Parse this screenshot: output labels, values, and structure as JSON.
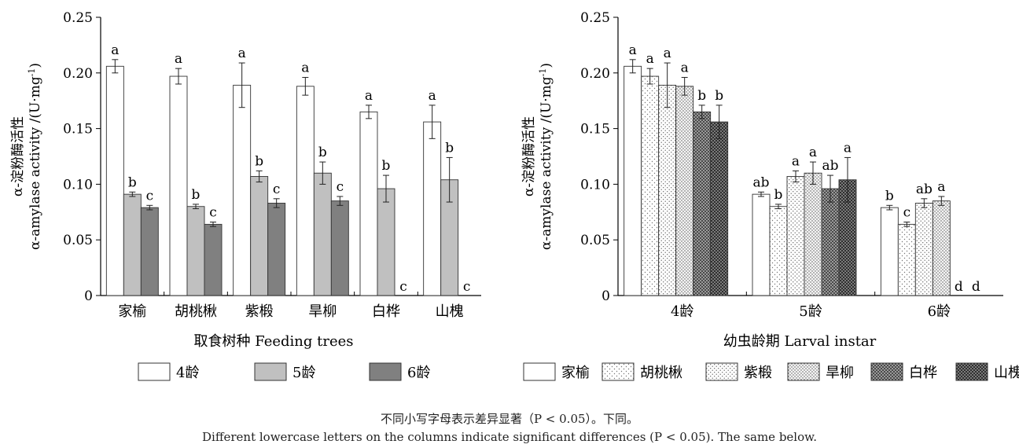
{
  "chart_data": [
    {
      "type": "bar",
      "categories": [
        "家榆",
        "胡桃楸",
        "紫椴",
        "旱柳",
        "白桦",
        "山槐"
      ],
      "series": [
        {
          "name": "4龄",
          "values": [
            0.206,
            0.197,
            0.189,
            0.188,
            0.165,
            0.156
          ],
          "errors": [
            0.006,
            0.007,
            0.02,
            0.008,
            0.006,
            0.015
          ],
          "letters": [
            "a",
            "a",
            "a",
            "a",
            "a",
            "a"
          ]
        },
        {
          "name": "5龄",
          "values": [
            0.091,
            0.08,
            0.107,
            0.11,
            0.096,
            0.104
          ],
          "errors": [
            0.002,
            0.002,
            0.005,
            0.01,
            0.012,
            0.02
          ],
          "letters": [
            "b",
            "b",
            "b",
            "b",
            "b",
            "b"
          ]
        },
        {
          "name": "6龄",
          "values": [
            0.079,
            0.064,
            0.083,
            0.085,
            0,
            0
          ],
          "errors": [
            0.002,
            0.002,
            0.004,
            0.004,
            0,
            0
          ],
          "letters": [
            "c",
            "c",
            "c",
            "c",
            "c",
            "c"
          ]
        }
      ],
      "colors": [
        "#ffffff",
        "#c0c0c0",
        "#808080"
      ],
      "ylabel_cn": "α-淀粉酶活性",
      "ylabel_en": "α-amylase activity /(U·mg",
      "ylabel_sup": "-1",
      "ylabel_close": ")",
      "xlabel": "取食树种 Feeding trees",
      "ylim": [
        0,
        0.25
      ],
      "yticks": [
        "0",
        "0.05",
        "0.10",
        "0.15",
        "0.20",
        "0.25"
      ],
      "legend": [
        "4龄",
        "5龄",
        "6龄"
      ],
      "legend_position": "bottom"
    },
    {
      "type": "bar",
      "categories": [
        "4龄",
        "5龄",
        "6龄"
      ],
      "series": [
        {
          "name": "家榆",
          "values": [
            0.206,
            0.091,
            0.079
          ],
          "errors": [
            0.006,
            0.002,
            0.002
          ],
          "letters": [
            "a",
            "ab",
            "b"
          ]
        },
        {
          "name": "胡桃楸",
          "values": [
            0.197,
            0.08,
            0.064
          ],
          "errors": [
            0.007,
            0.002,
            0.002
          ],
          "letters": [
            "a",
            "b",
            "c"
          ]
        },
        {
          "name": "紫椴",
          "values": [
            0.189,
            0.107,
            0.083
          ],
          "errors": [
            0.02,
            0.005,
            0.004
          ],
          "letters": [
            "a",
            "a",
            "ab"
          ]
        },
        {
          "name": "旱柳",
          "values": [
            0.188,
            0.11,
            0.085
          ],
          "errors": [
            0.008,
            0.01,
            0.004
          ],
          "letters": [
            "a",
            "a",
            "a"
          ]
        },
        {
          "name": "白桦",
          "values": [
            0.165,
            0.096,
            0
          ],
          "errors": [
            0.006,
            0.012,
            0
          ],
          "letters": [
            "b",
            "ab",
            "d"
          ]
        },
        {
          "name": "山槐",
          "values": [
            0.156,
            0.104,
            0
          ],
          "errors": [
            0.015,
            0.02,
            0
          ],
          "letters": [
            "b",
            "a",
            "d"
          ]
        }
      ],
      "fills": [
        "#ffffff",
        "dots-sparse",
        "dots-medium",
        "dots-dense",
        "checker-dark",
        "checker-darker"
      ],
      "ylabel_cn": "α-淀粉酶活性",
      "ylabel_en": "α-amylase activity /(U·mg",
      "ylabel_sup": "-1",
      "ylabel_close": ")",
      "xlabel": "幼虫龄期 Larval instar",
      "ylim": [
        0,
        0.25
      ],
      "yticks": [
        "0",
        "0.05",
        "0.10",
        "0.15",
        "0.20",
        "0.25"
      ],
      "legend": [
        "家榆",
        "胡桃楸",
        "紫椴",
        "旱柳",
        "白桦",
        "山槐"
      ],
      "legend_position": "bottom"
    }
  ],
  "caption_cn": "不同小写字母表示差异显著（P < 0.05）。下同。",
  "caption_en": "Different lowercase letters on the columns indicate significant differences (P < 0.05). The same below."
}
